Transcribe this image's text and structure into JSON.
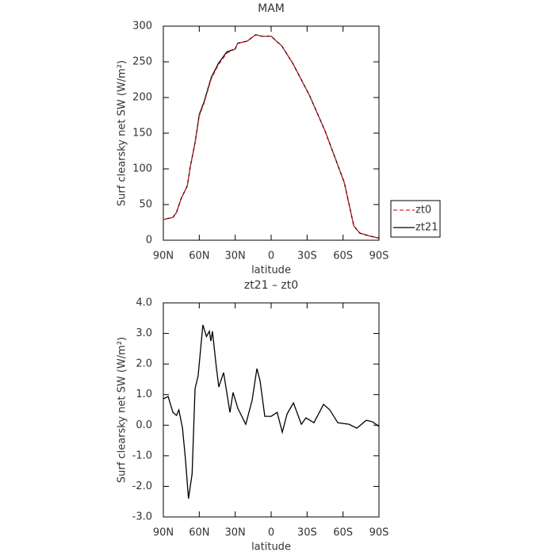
{
  "chart_data": [
    {
      "type": "line",
      "title": "MAM",
      "xlabel": "latitude",
      "ylabel": "Surf clearsky net SW (W/m²)",
      "x": [
        90,
        82,
        79,
        75,
        70,
        67.5,
        63.5,
        60,
        56,
        50,
        44,
        37,
        30,
        28,
        20,
        13,
        8,
        0,
        -9,
        -18,
        -32,
        -45,
        -61,
        -69,
        -74,
        -82,
        -90
      ],
      "series": [
        {
          "name": "zt0",
          "color": "#e8242c",
          "dash": true,
          "values": [
            29,
            32,
            39,
            59,
            76,
            103,
            136,
            174,
            192,
            226,
            246,
            262,
            268,
            276,
            279,
            288,
            286,
            286,
            272,
            248,
            203,
            153,
            81,
            20,
            10,
            6,
            3
          ]
        },
        {
          "name": "zt21",
          "color": "#000000",
          "dash": false,
          "values": [
            29,
            32,
            39,
            59,
            76,
            103,
            137,
            176,
            194,
            228,
            248,
            264,
            268,
            276,
            279,
            288,
            286,
            286,
            272,
            248,
            203,
            153,
            81,
            20,
            10,
            6,
            3
          ]
        }
      ],
      "xlim": [
        90,
        -90
      ],
      "xticks": [
        {
          "value": 90,
          "label": "90N"
        },
        {
          "value": 60,
          "label": "60N"
        },
        {
          "value": 30,
          "label": "30N"
        },
        0,
        {
          "value": -30,
          "label": "30S"
        },
        {
          "value": -60,
          "label": "60S"
        },
        {
          "value": -90,
          "label": "90S"
        }
      ],
      "ylim": [
        0,
        300
      ],
      "yticks": [
        0,
        50,
        100,
        150,
        200,
        250,
        300
      ],
      "legend": "right",
      "grid": false
    },
    {
      "type": "line",
      "title": "zt21 – zt0",
      "xlabel": "latitude",
      "ylabel": "Surf clearsky net SW (W/m²)",
      "x": [
        90,
        86,
        82,
        79,
        77,
        74,
        71.5,
        69,
        66,
        63.5,
        61,
        57,
        54,
        51.6,
        50.3,
        49,
        46,
        43.7,
        39.7,
        34.4,
        31.8,
        27.8,
        21.2,
        15.9,
        11.9,
        9.3,
        5.3,
        0,
        -5,
        -9.3,
        -13.3,
        -18.6,
        -25.2,
        -29,
        -35.7,
        -43.7,
        -49,
        -55.6,
        -65,
        -71.5,
        -79.4,
        -84.7,
        -90
      ],
      "values": [
        0.86,
        0.94,
        0.42,
        0.32,
        0.5,
        -0.1,
        -1.13,
        -2.4,
        -1.6,
        1.2,
        1.6,
        3.28,
        2.9,
        3.07,
        2.75,
        3.07,
        1.98,
        1.25,
        1.72,
        0.42,
        1.07,
        0.55,
        0.03,
        0.81,
        1.85,
        1.46,
        0.29,
        0.29,
        0.42,
        -0.23,
        0.37,
        0.73,
        0.03,
        0.24,
        0.08,
        0.68,
        0.5,
        0.08,
        0.03,
        -0.1,
        0.16,
        0.11,
        -0.04
      ],
      "color": "#000000",
      "xlim": [
        90,
        -90
      ],
      "xticks": [
        {
          "value": 90,
          "label": "90N"
        },
        {
          "value": 60,
          "label": "60N"
        },
        {
          "value": 30,
          "label": "30N"
        },
        0,
        {
          "value": -30,
          "label": "30S"
        },
        {
          "value": -60,
          "label": "60S"
        },
        {
          "value": -90,
          "label": "90S"
        }
      ],
      "ylim": [
        -3,
        4
      ],
      "yticks": [
        {
          "value": -3,
          "label": "-3.0"
        },
        {
          "value": -2,
          "label": "-2.0"
        },
        {
          "value": -1,
          "label": "-1.0"
        },
        {
          "value": 0,
          "label": "0.0"
        },
        {
          "value": 1,
          "label": "1.0"
        },
        {
          "value": 2,
          "label": "2.0"
        },
        {
          "value": 3,
          "label": "3.0"
        },
        {
          "value": 4,
          "label": "4.0"
        }
      ],
      "grid": false
    }
  ]
}
